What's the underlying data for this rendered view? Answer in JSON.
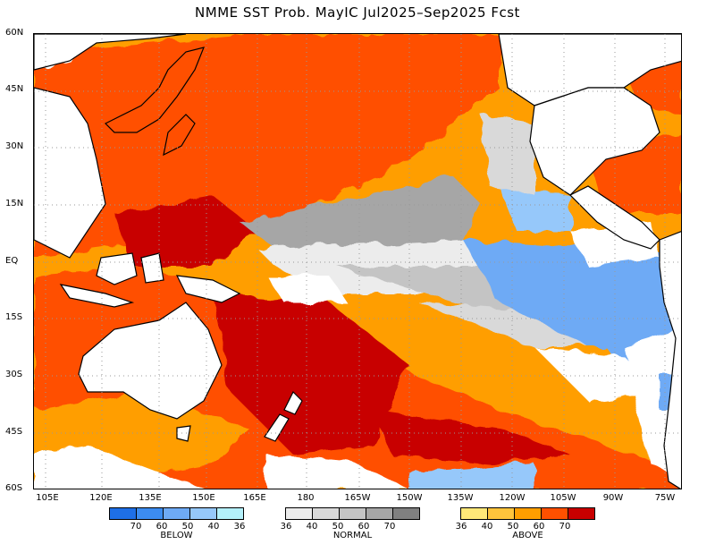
{
  "title": "NMME SST Prob. MayIC  Jul2025–Sep2025 Fcst",
  "lat_labels": [
    "60N",
    "45N",
    "30N",
    "15N",
    "EQ",
    "15S",
    "30S",
    "45S",
    "60S"
  ],
  "lon_labels": [
    "105E",
    "120E",
    "135E",
    "150E",
    "165E",
    "180",
    "165W",
    "150W",
    "135W",
    "120W",
    "105W",
    "90W",
    "75W"
  ],
  "legend": {
    "below": {
      "name": "BELOW",
      "colors": [
        "#1e6fe6",
        "#3c8cf0",
        "#6eaaf5",
        "#96c8fa",
        "#b4f0fa"
      ],
      "ticks": [
        "70",
        "60",
        "50",
        "40",
        "36"
      ]
    },
    "normal": {
      "name": "NORMAL",
      "colors": [
        "#ececec",
        "#d9d9d9",
        "#c4c4c4",
        "#a6a6a6",
        "#808080"
      ],
      "ticks": [
        "36",
        "40",
        "50",
        "60",
        "70"
      ]
    },
    "above": {
      "name": "ABOVE",
      "colors": [
        "#ffe878",
        "#ffc43c",
        "#ff9e00",
        "#ff5000",
        "#c80000"
      ],
      "ticks": [
        "36",
        "40",
        "50",
        "60",
        "70"
      ]
    }
  }
}
